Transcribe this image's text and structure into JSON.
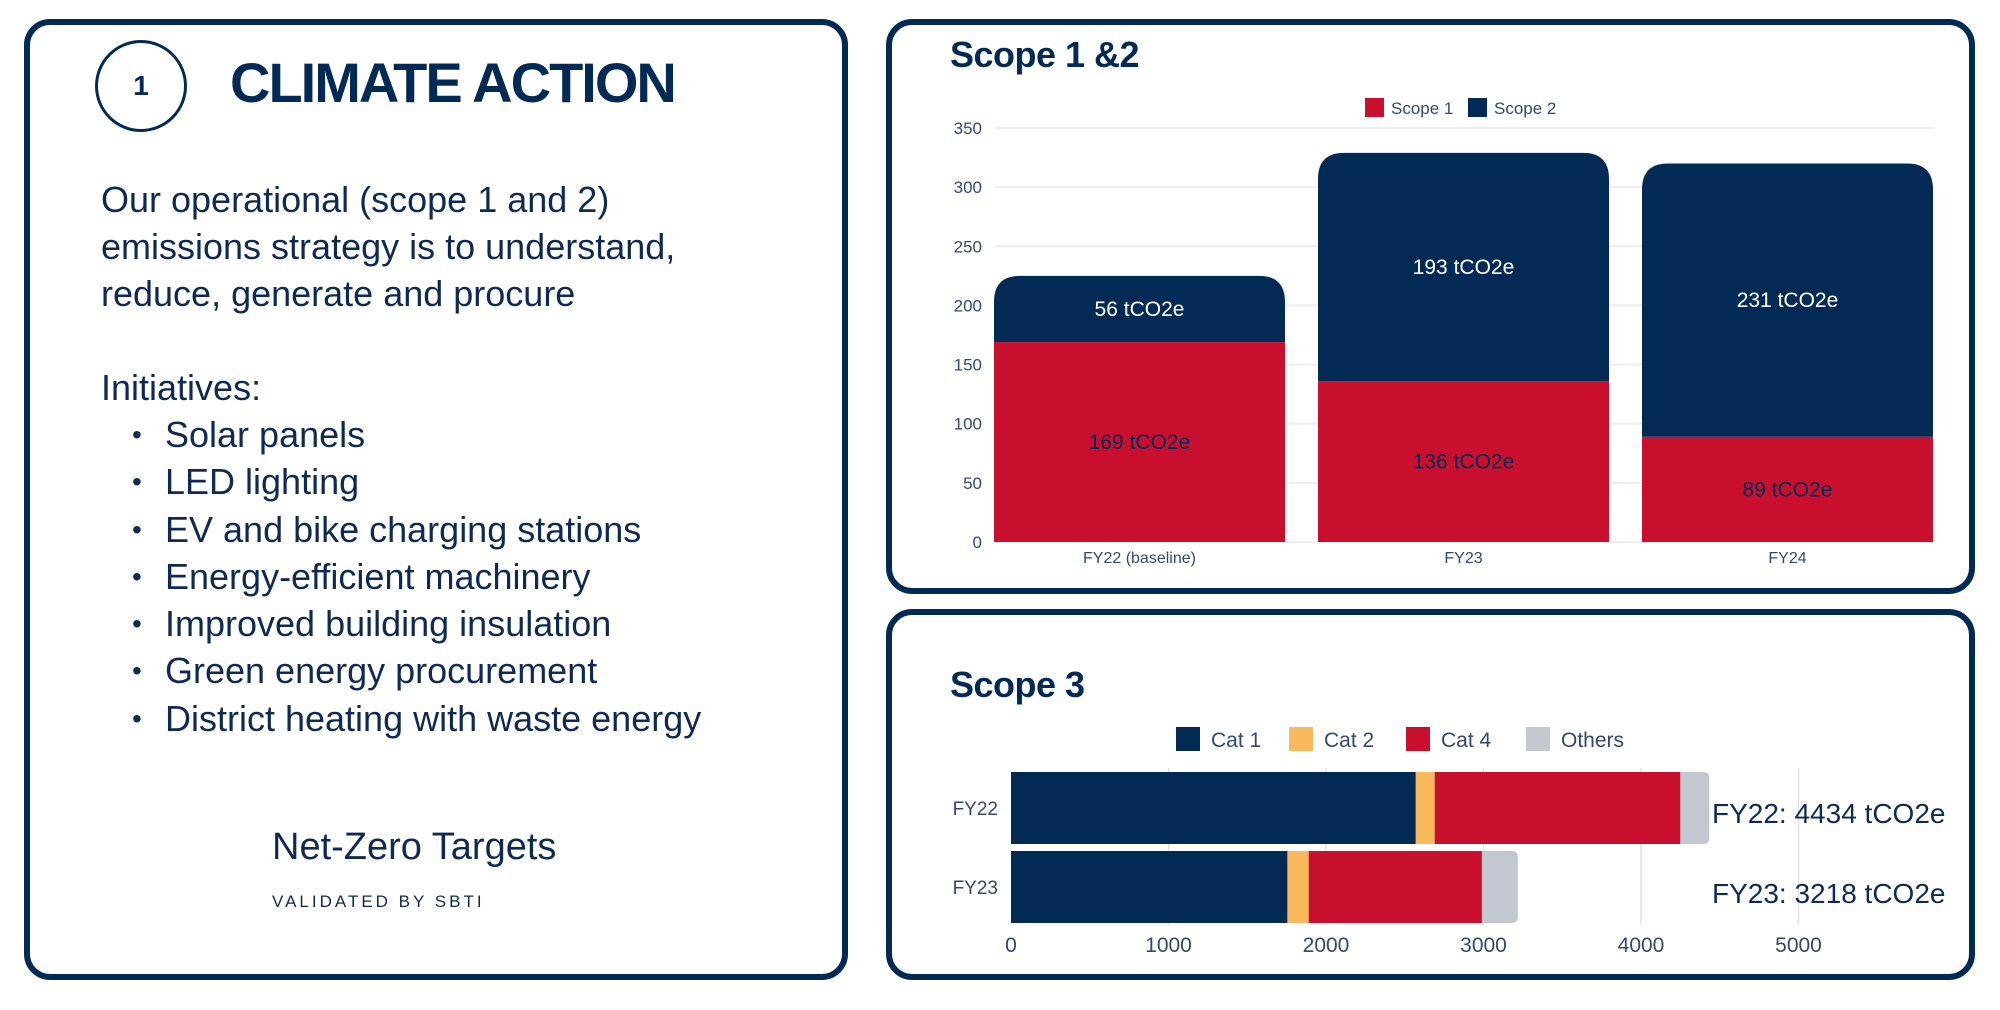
{
  "left_panel": {
    "number": "1",
    "title": "CLIMATE ACTION",
    "intro_lines": [
      "Our operational (scope 1 and 2)",
      "emissions strategy is to understand,",
      "reduce, generate and procure"
    ],
    "initiatives_label": "Initiatives:",
    "initiatives": [
      "Solar panels",
      "LED lighting",
      "EV and bike charging stations",
      "Energy-efficient machinery",
      "Improved building insulation",
      "Green energy procurement",
      "District heating with waste energy"
    ],
    "bullet": "•",
    "net_zero_title": "Net-Zero Targets",
    "net_zero_subtitle": "VALIDATED BY SBTI"
  },
  "colors": {
    "navy": "#022a55",
    "red": "#c8102e",
    "amber": "#f9b95c",
    "grey": "#c3c8d0",
    "grid": "#eceef2"
  },
  "chart_data": [
    {
      "type": "bar",
      "stacked": true,
      "title": "Scope 1 &2",
      "categories": [
        "FY22 (baseline)",
        "FY23",
        "FY24"
      ],
      "series": [
        {
          "name": "Scope 1",
          "values": [
            169,
            136,
            89
          ],
          "labels": [
            "169 tCO2e",
            "136 tCO2e",
            "89 tCO2e"
          ],
          "color": "#c8102e"
        },
        {
          "name": "Scope 2",
          "values": [
            56,
            193,
            231
          ],
          "labels": [
            "56 tCO2e",
            "193 tCO2e",
            "231 tCO2e"
          ],
          "color": "#022a55"
        }
      ],
      "yticks": [
        "0",
        "50",
        "100",
        "150",
        "200",
        "250",
        "300",
        "350"
      ],
      "ylim": [
        0,
        350
      ],
      "xlabel": "",
      "ylabel": "",
      "legend": "top-center",
      "grid": true
    },
    {
      "type": "bar",
      "orientation": "horizontal",
      "stacked": true,
      "title": "Scope 3",
      "categories": [
        "FY22",
        "FY23"
      ],
      "series": [
        {
          "name": "Cat 1",
          "values": [
            2570,
            1755
          ],
          "color": "#022a55"
        },
        {
          "name": "Cat 2",
          "values": [
            120,
            135
          ],
          "color": "#f9b95c"
        },
        {
          "name": "Cat 4",
          "values": [
            1560,
            1100
          ],
          "color": "#c8102e"
        },
        {
          "name": "Others",
          "values": [
            184,
            228
          ],
          "color": "#c3c8d0"
        }
      ],
      "totals": [
        "FY22: 4434 tCO2e",
        "FY23: 3218 tCO2e"
      ],
      "xticks": [
        "0",
        "1000",
        "2000",
        "3000",
        "4000",
        "5000"
      ],
      "xlim": [
        0,
        5000
      ],
      "legend": "top-center",
      "grid": true
    }
  ]
}
